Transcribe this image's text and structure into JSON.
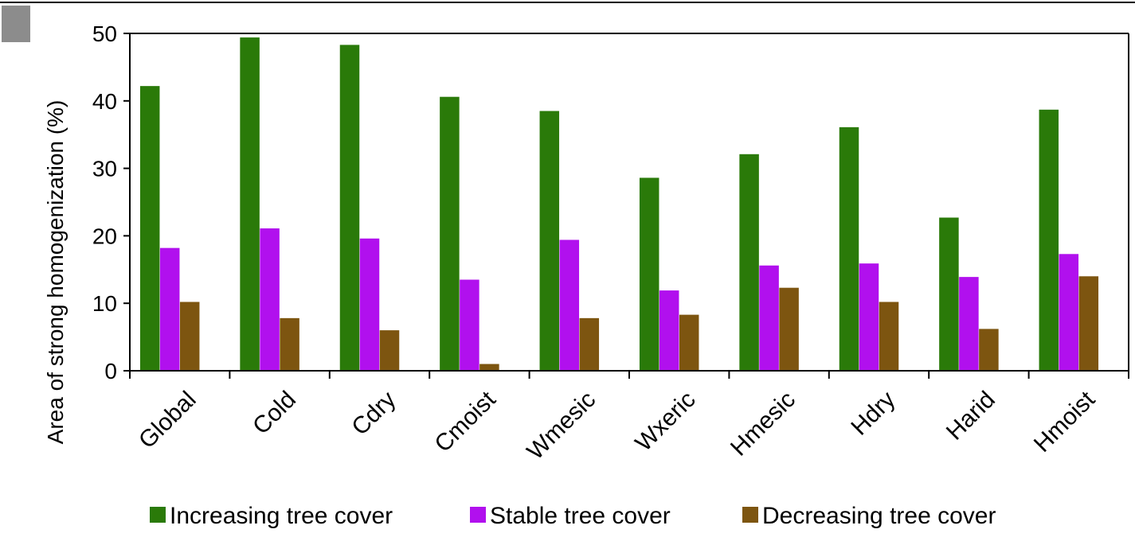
{
  "chart_data": {
    "type": "bar",
    "title": "",
    "xlabel": "",
    "ylabel": "Area of strong homogenization  (%)",
    "ylim": [
      0,
      50
    ],
    "yticks": [
      0,
      10,
      20,
      30,
      40,
      50
    ],
    "grid": false,
    "legend_position": "bottom",
    "categories": [
      "Global",
      "Cold",
      "Cdry",
      "Cmoist",
      "Wmesic",
      "Wxeric",
      "Hmesic",
      "Hdry",
      "Harid",
      "Hmoist"
    ],
    "series": [
      {
        "name": "Increasing tree cover",
        "color": "#2a7a09",
        "values": [
          42.2,
          49.4,
          48.3,
          40.6,
          38.5,
          28.6,
          32.1,
          36.1,
          22.7,
          38.7
        ]
      },
      {
        "name": "Stable tree cover",
        "color": "#b110ee",
        "values": [
          18.2,
          21.1,
          19.6,
          13.5,
          19.4,
          11.9,
          15.6,
          15.9,
          13.9,
          17.3
        ]
      },
      {
        "name": "Decreasing tree cover",
        "color": "#7d5510",
        "values": [
          10.2,
          7.8,
          6.0,
          1.0,
          7.8,
          8.3,
          12.3,
          10.2,
          6.2,
          14.0
        ]
      }
    ]
  }
}
